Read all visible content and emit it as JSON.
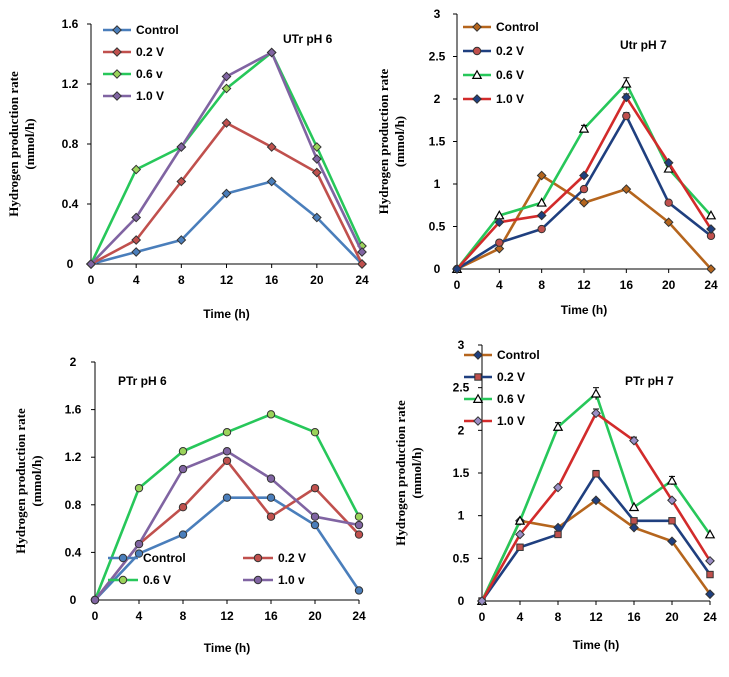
{
  "chart_data": [
    {
      "type": "line",
      "title": "UTr pH 6",
      "xlabel": "Time (h)",
      "ylabel_lines": [
        "Hydrogen production rate",
        "(mmol/h)"
      ],
      "x": [
        0,
        4,
        8,
        12,
        16,
        20,
        24
      ],
      "xticks": [
        "0",
        "4",
        "8",
        "12",
        "16",
        "20",
        "24"
      ],
      "ylim": [
        0,
        1.6
      ],
      "yticks": [
        "0",
        "0.4",
        "0.8",
        "1.2",
        "1.6"
      ],
      "yticks_values": [
        0,
        0.4,
        0.8,
        1.2,
        1.6
      ],
      "legend_position": "top-left",
      "series": [
        {
          "name": "Control",
          "values": [
            0,
            0.08,
            0.16,
            0.47,
            0.55,
            0.31,
            0.0
          ],
          "color": "#4a7ebb",
          "marker": "diamond",
          "marker_fill": "#4a7ebb"
        },
        {
          "name": "0.2 V",
          "values": [
            0,
            0.16,
            0.55,
            0.94,
            0.78,
            0.61,
            0.0
          ],
          "color": "#c0504d",
          "marker": "diamond",
          "marker_fill": "#c0504d"
        },
        {
          "name": "0.6 v",
          "values": [
            0,
            0.63,
            0.78,
            1.17,
            1.41,
            0.78,
            0.12
          ],
          "color": "#27c75a",
          "marker": "diamond",
          "marker_fill": "#9bd35a"
        },
        {
          "name": "1.0 V",
          "values": [
            0,
            0.31,
            0.78,
            1.25,
            1.41,
            0.7,
            0.08
          ],
          "color": "#8064a2",
          "marker": "diamond",
          "marker_fill": "#8064a2"
        }
      ]
    },
    {
      "type": "line",
      "title": "Utr pH 7",
      "xlabel": "Time (h)",
      "ylabel_lines": [
        "Hydrogen production rate",
        "(mmol/h)"
      ],
      "x": [
        0,
        4,
        8,
        12,
        16,
        20,
        24
      ],
      "xticks": [
        "0",
        "4",
        "8",
        "12",
        "16",
        "20",
        "24"
      ],
      "ylim": [
        0,
        3
      ],
      "yticks": [
        "0",
        "0.5",
        "1",
        "1.5",
        "2",
        "2.5",
        "3"
      ],
      "yticks_values": [
        0,
        0.5,
        1,
        1.5,
        2,
        2.5,
        3
      ],
      "legend_position": "top-left",
      "series": [
        {
          "name": "Control",
          "values": [
            0,
            0.24,
            1.1,
            0.78,
            0.94,
            0.55,
            0.0
          ],
          "color": "#b5651d",
          "marker": "diamond",
          "marker_fill": "#b5651d",
          "errors": [
            0,
            0,
            0,
            0,
            0,
            0,
            0
          ]
        },
        {
          "name": "0.2 V",
          "values": [
            0,
            0.31,
            0.47,
            0.94,
            1.8,
            0.78,
            0.39
          ],
          "color": "#1f3f7f",
          "marker": "circle",
          "marker_fill": "#c0504d",
          "errors": [
            0,
            0,
            0,
            0,
            0.04,
            0,
            0
          ]
        },
        {
          "name": "0.6 V",
          "values": [
            0,
            0.63,
            0.78,
            1.65,
            2.18,
            1.18,
            0.63
          ],
          "color": "#27c75a",
          "marker": "triangle",
          "marker_fill": "#ffffff",
          "errors": [
            0,
            0,
            0,
            0.04,
            0.07,
            0.04,
            0
          ]
        },
        {
          "name": "1.0 V",
          "values": [
            0,
            0.55,
            0.63,
            1.1,
            2.02,
            1.25,
            0.47
          ],
          "color": "#d22b2b",
          "marker": "diamond",
          "marker_fill": "#1f3f7f",
          "errors": [
            0,
            0,
            0,
            0,
            0.04,
            0,
            0
          ]
        }
      ]
    },
    {
      "type": "line",
      "title": "PTr pH 6",
      "xlabel": "Time (h)",
      "ylabel_lines": [
        "Hydrogen production rate",
        "(mmol/h)"
      ],
      "x": [
        0,
        4,
        8,
        12,
        16,
        20,
        24
      ],
      "xticks": [
        "0",
        "4",
        "8",
        "12",
        "16",
        "20",
        "24"
      ],
      "ylim": [
        0,
        2
      ],
      "yticks": [
        "0",
        "0.4",
        "0.8",
        "1.2",
        "1.6",
        "2"
      ],
      "yticks_values": [
        0,
        0.4,
        0.8,
        1.2,
        1.6,
        2
      ],
      "legend_position": "bottom",
      "series": [
        {
          "name": "Control",
          "values": [
            0,
            0.39,
            0.55,
            0.86,
            0.86,
            0.63,
            0.08
          ],
          "color": "#4a7ebb",
          "marker": "circle",
          "marker_fill": "#4a7ebb"
        },
        {
          "name": "0.2 V",
          "values": [
            0,
            0.47,
            0.78,
            1.17,
            0.7,
            0.94,
            0.55
          ],
          "color": "#c0504d",
          "marker": "circle",
          "marker_fill": "#c0504d"
        },
        {
          "name": "0.6 V",
          "values": [
            0,
            0.94,
            1.25,
            1.41,
            1.56,
            1.41,
            0.7
          ],
          "color": "#27c75a",
          "marker": "circle",
          "marker_fill": "#9bd35a"
        },
        {
          "name": "1.0 v",
          "values": [
            0,
            0.47,
            1.1,
            1.25,
            1.02,
            0.7,
            0.63
          ],
          "color": "#8064a2",
          "marker": "circle",
          "marker_fill": "#8064a2"
        }
      ]
    },
    {
      "type": "line",
      "title": "PTr pH 7",
      "xlabel": "Time (h)",
      "ylabel_lines": [
        "Hydrogen production rate",
        "(mmol/h)"
      ],
      "x": [
        0,
        4,
        8,
        12,
        16,
        20,
        24
      ],
      "xticks": [
        "0",
        "4",
        "8",
        "12",
        "16",
        "20",
        "24"
      ],
      "ylim": [
        0,
        3
      ],
      "yticks": [
        "0",
        "0.5",
        "1",
        "1.5",
        "2",
        "2.5",
        "3"
      ],
      "yticks_values": [
        0,
        0.5,
        1,
        1.5,
        2,
        2.5,
        3
      ],
      "legend_position": "top-left",
      "series": [
        {
          "name": "Control",
          "values": [
            0,
            0.94,
            0.86,
            1.18,
            0.86,
            0.7,
            0.08
          ],
          "color": "#b5651d",
          "marker": "diamond",
          "marker_fill": "#1f3f7f",
          "errors": [
            0,
            0,
            0,
            0,
            0,
            0,
            0
          ]
        },
        {
          "name": "0.2 V",
          "values": [
            0,
            0.63,
            0.78,
            1.49,
            0.94,
            0.94,
            0.31
          ],
          "color": "#1f3f7f",
          "marker": "square",
          "marker_fill": "#c0504d",
          "errors": [
            0,
            0,
            0,
            0.04,
            0,
            0,
            0
          ]
        },
        {
          "name": "0.6 V",
          "values": [
            0,
            0.94,
            2.04,
            2.43,
            1.1,
            1.41,
            0.78
          ],
          "color": "#27c75a",
          "marker": "triangle",
          "marker_fill": "#ffffff",
          "errors": [
            0,
            0,
            0.05,
            0.07,
            0,
            0.05,
            0
          ]
        },
        {
          "name": "1.0 V",
          "values": [
            0,
            0.78,
            1.33,
            2.2,
            1.88,
            1.18,
            0.47
          ],
          "color": "#d22b2b",
          "marker": "diamond",
          "marker_fill": "#9b8ec6",
          "errors": [
            0,
            0,
            0,
            0.05,
            0.04,
            0,
            0
          ]
        }
      ]
    }
  ]
}
